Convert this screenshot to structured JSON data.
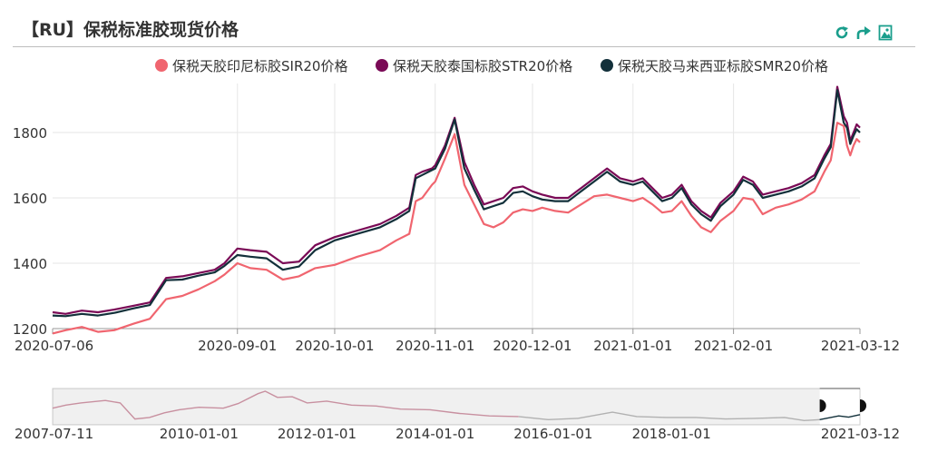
{
  "title": "【RU】保税标准胶现货价格",
  "toolbar": {
    "refresh_icon": "refresh-icon",
    "share_icon": "share-icon",
    "save_image_icon": "save-image-icon",
    "accent_color": "#1a9e8c"
  },
  "chart_data": {
    "type": "line",
    "grid": true,
    "legend_position": "top",
    "x_ticks": [
      "2020-07-06",
      "2020-09-01",
      "2020-10-01",
      "2020-11-01",
      "2020-12-01",
      "2021-01-01",
      "2021-02-01",
      "2021-03-12"
    ],
    "y_ticks": [
      1200,
      1400,
      1600,
      1800
    ],
    "xlim": [
      "2020-07-06",
      "2021-03-12"
    ],
    "ylim": [
      1200,
      1950
    ],
    "series": [
      {
        "name": "保税天胶印尼标胶SIR20价格",
        "color": "#f0656f",
        "points": [
          [
            "2020-07-06",
            1185
          ],
          [
            "2020-07-10",
            1195
          ],
          [
            "2020-07-15",
            1205
          ],
          [
            "2020-07-20",
            1190
          ],
          [
            "2020-07-25",
            1195
          ],
          [
            "2020-07-31",
            1215
          ],
          [
            "2020-08-05",
            1230
          ],
          [
            "2020-08-10",
            1290
          ],
          [
            "2020-08-15",
            1300
          ],
          [
            "2020-08-20",
            1320
          ],
          [
            "2020-08-25",
            1345
          ],
          [
            "2020-08-28",
            1365
          ],
          [
            "2020-09-01",
            1400
          ],
          [
            "2020-09-05",
            1385
          ],
          [
            "2020-09-10",
            1380
          ],
          [
            "2020-09-15",
            1350
          ],
          [
            "2020-09-20",
            1360
          ],
          [
            "2020-09-25",
            1385
          ],
          [
            "2020-10-01",
            1395
          ],
          [
            "2020-10-08",
            1420
          ],
          [
            "2020-10-15",
            1440
          ],
          [
            "2020-10-20",
            1470
          ],
          [
            "2020-10-24",
            1490
          ],
          [
            "2020-10-26",
            1590
          ],
          [
            "2020-10-28",
            1600
          ],
          [
            "2020-10-31",
            1640
          ],
          [
            "2020-11-01",
            1650
          ],
          [
            "2020-11-04",
            1720
          ],
          [
            "2020-11-07",
            1795
          ],
          [
            "2020-11-10",
            1640
          ],
          [
            "2020-11-13",
            1580
          ],
          [
            "2020-11-16",
            1520
          ],
          [
            "2020-11-19",
            1510
          ],
          [
            "2020-11-22",
            1525
          ],
          [
            "2020-11-25",
            1555
          ],
          [
            "2020-11-28",
            1565
          ],
          [
            "2020-12-01",
            1560
          ],
          [
            "2020-12-04",
            1570
          ],
          [
            "2020-12-08",
            1560
          ],
          [
            "2020-12-12",
            1555
          ],
          [
            "2020-12-16",
            1580
          ],
          [
            "2020-12-20",
            1605
          ],
          [
            "2020-12-24",
            1610
          ],
          [
            "2020-12-28",
            1600
          ],
          [
            "2021-01-01",
            1590
          ],
          [
            "2021-01-04",
            1600
          ],
          [
            "2021-01-07",
            1580
          ],
          [
            "2021-01-10",
            1555
          ],
          [
            "2021-01-13",
            1560
          ],
          [
            "2021-01-16",
            1590
          ],
          [
            "2021-01-19",
            1545
          ],
          [
            "2021-01-22",
            1510
          ],
          [
            "2021-01-25",
            1495
          ],
          [
            "2021-01-28",
            1530
          ],
          [
            "2021-02-01",
            1560
          ],
          [
            "2021-02-04",
            1600
          ],
          [
            "2021-02-07",
            1595
          ],
          [
            "2021-02-10",
            1550
          ],
          [
            "2021-02-14",
            1570
          ],
          [
            "2021-02-18",
            1580
          ],
          [
            "2021-02-22",
            1595
          ],
          [
            "2021-02-26",
            1620
          ],
          [
            "2021-03-01",
            1680
          ],
          [
            "2021-03-03",
            1715
          ],
          [
            "2021-03-05",
            1830
          ],
          [
            "2021-03-07",
            1820
          ],
          [
            "2021-03-08",
            1760
          ],
          [
            "2021-03-09",
            1730
          ],
          [
            "2021-03-10",
            1760
          ],
          [
            "2021-03-11",
            1780
          ],
          [
            "2021-03-12",
            1770
          ]
        ]
      },
      {
        "name": "保税天胶泰国标胶STR20价格",
        "color": "#7a0a56",
        "points": [
          [
            "2020-07-06",
            1250
          ],
          [
            "2020-07-10",
            1245
          ],
          [
            "2020-07-15",
            1255
          ],
          [
            "2020-07-20",
            1250
          ],
          [
            "2020-07-25",
            1258
          ],
          [
            "2020-07-31",
            1270
          ],
          [
            "2020-08-05",
            1280
          ],
          [
            "2020-08-10",
            1355
          ],
          [
            "2020-08-15",
            1360
          ],
          [
            "2020-08-20",
            1370
          ],
          [
            "2020-08-25",
            1380
          ],
          [
            "2020-08-28",
            1400
          ],
          [
            "2020-09-01",
            1445
          ],
          [
            "2020-09-05",
            1440
          ],
          [
            "2020-09-10",
            1435
          ],
          [
            "2020-09-15",
            1400
          ],
          [
            "2020-09-20",
            1405
          ],
          [
            "2020-09-25",
            1455
          ],
          [
            "2020-10-01",
            1480
          ],
          [
            "2020-10-08",
            1500
          ],
          [
            "2020-10-15",
            1520
          ],
          [
            "2020-10-20",
            1545
          ],
          [
            "2020-10-24",
            1570
          ],
          [
            "2020-10-26",
            1670
          ],
          [
            "2020-10-28",
            1680
          ],
          [
            "2020-10-31",
            1690
          ],
          [
            "2020-11-01",
            1700
          ],
          [
            "2020-11-04",
            1760
          ],
          [
            "2020-11-07",
            1845
          ],
          [
            "2020-11-10",
            1710
          ],
          [
            "2020-11-13",
            1640
          ],
          [
            "2020-11-16",
            1580
          ],
          [
            "2020-11-19",
            1590
          ],
          [
            "2020-11-22",
            1600
          ],
          [
            "2020-11-25",
            1630
          ],
          [
            "2020-11-28",
            1635
          ],
          [
            "2020-12-01",
            1620
          ],
          [
            "2020-12-04",
            1610
          ],
          [
            "2020-12-08",
            1600
          ],
          [
            "2020-12-12",
            1600
          ],
          [
            "2020-12-16",
            1630
          ],
          [
            "2020-12-20",
            1660
          ],
          [
            "2020-12-24",
            1690
          ],
          [
            "2020-12-28",
            1660
          ],
          [
            "2021-01-01",
            1650
          ],
          [
            "2021-01-04",
            1660
          ],
          [
            "2021-01-07",
            1630
          ],
          [
            "2021-01-10",
            1600
          ],
          [
            "2021-01-13",
            1610
          ],
          [
            "2021-01-16",
            1640
          ],
          [
            "2021-01-19",
            1590
          ],
          [
            "2021-01-22",
            1560
          ],
          [
            "2021-01-25",
            1540
          ],
          [
            "2021-01-28",
            1585
          ],
          [
            "2021-02-01",
            1620
          ],
          [
            "2021-02-04",
            1665
          ],
          [
            "2021-02-07",
            1650
          ],
          [
            "2021-02-10",
            1610
          ],
          [
            "2021-02-14",
            1620
          ],
          [
            "2021-02-18",
            1630
          ],
          [
            "2021-02-22",
            1645
          ],
          [
            "2021-02-26",
            1670
          ],
          [
            "2021-03-01",
            1730
          ],
          [
            "2021-03-03",
            1765
          ],
          [
            "2021-03-05",
            1940
          ],
          [
            "2021-03-07",
            1850
          ],
          [
            "2021-03-08",
            1830
          ],
          [
            "2021-03-09",
            1775
          ],
          [
            "2021-03-10",
            1800
          ],
          [
            "2021-03-11",
            1825
          ],
          [
            "2021-03-12",
            1815
          ]
        ]
      },
      {
        "name": "保税天胶马来西亚标胶SMR20价格",
        "color": "#12303a",
        "points": [
          [
            "2020-07-06",
            1240
          ],
          [
            "2020-07-10",
            1238
          ],
          [
            "2020-07-15",
            1245
          ],
          [
            "2020-07-20",
            1240
          ],
          [
            "2020-07-25",
            1248
          ],
          [
            "2020-07-31",
            1262
          ],
          [
            "2020-08-05",
            1272
          ],
          [
            "2020-08-10",
            1348
          ],
          [
            "2020-08-15",
            1350
          ],
          [
            "2020-08-20",
            1362
          ],
          [
            "2020-08-25",
            1372
          ],
          [
            "2020-08-28",
            1392
          ],
          [
            "2020-09-01",
            1425
          ],
          [
            "2020-09-05",
            1420
          ],
          [
            "2020-09-10",
            1415
          ],
          [
            "2020-09-15",
            1380
          ],
          [
            "2020-09-20",
            1390
          ],
          [
            "2020-09-25",
            1440
          ],
          [
            "2020-10-01",
            1470
          ],
          [
            "2020-10-08",
            1490
          ],
          [
            "2020-10-15",
            1510
          ],
          [
            "2020-10-20",
            1535
          ],
          [
            "2020-10-24",
            1560
          ],
          [
            "2020-10-26",
            1660
          ],
          [
            "2020-10-28",
            1670
          ],
          [
            "2020-10-31",
            1685
          ],
          [
            "2020-11-01",
            1690
          ],
          [
            "2020-11-04",
            1750
          ],
          [
            "2020-11-07",
            1840
          ],
          [
            "2020-11-10",
            1690
          ],
          [
            "2020-11-13",
            1625
          ],
          [
            "2020-11-16",
            1565
          ],
          [
            "2020-11-19",
            1575
          ],
          [
            "2020-11-22",
            1585
          ],
          [
            "2020-11-25",
            1615
          ],
          [
            "2020-11-28",
            1620
          ],
          [
            "2020-12-01",
            1605
          ],
          [
            "2020-12-04",
            1595
          ],
          [
            "2020-12-08",
            1590
          ],
          [
            "2020-12-12",
            1590
          ],
          [
            "2020-12-16",
            1620
          ],
          [
            "2020-12-20",
            1650
          ],
          [
            "2020-12-24",
            1680
          ],
          [
            "2020-12-28",
            1650
          ],
          [
            "2021-01-01",
            1640
          ],
          [
            "2021-01-04",
            1650
          ],
          [
            "2021-01-07",
            1620
          ],
          [
            "2021-01-10",
            1590
          ],
          [
            "2021-01-13",
            1600
          ],
          [
            "2021-01-16",
            1630
          ],
          [
            "2021-01-19",
            1580
          ],
          [
            "2021-01-22",
            1550
          ],
          [
            "2021-01-25",
            1530
          ],
          [
            "2021-01-28",
            1575
          ],
          [
            "2021-02-01",
            1610
          ],
          [
            "2021-02-04",
            1655
          ],
          [
            "2021-02-07",
            1640
          ],
          [
            "2021-02-10",
            1600
          ],
          [
            "2021-02-14",
            1610
          ],
          [
            "2021-02-18",
            1620
          ],
          [
            "2021-02-22",
            1635
          ],
          [
            "2021-02-26",
            1660
          ],
          [
            "2021-03-01",
            1720
          ],
          [
            "2021-03-03",
            1755
          ],
          [
            "2021-03-05",
            1930
          ],
          [
            "2021-03-07",
            1830
          ],
          [
            "2021-03-08",
            1815
          ],
          [
            "2021-03-09",
            1765
          ],
          [
            "2021-03-10",
            1790
          ],
          [
            "2021-03-11",
            1810
          ],
          [
            "2021-03-12",
            1800
          ]
        ]
      }
    ]
  },
  "navigator": {
    "x_ticks": [
      "2007-07-11",
      "2010-01-01",
      "2012-01-01",
      "2014-01-01",
      "2016-01-01",
      "2018-01-01",
      "2021-03-12"
    ],
    "range_start": "2020-07-06",
    "range_end": "2021-03-12",
    "overview_points": [
      [
        "2007-07-11",
        0.45
      ],
      [
        "2007-10-01",
        0.55
      ],
      [
        "2008-01-01",
        0.62
      ],
      [
        "2008-06-01",
        0.7
      ],
      [
        "2008-09-01",
        0.62
      ],
      [
        "2008-12-01",
        0.1
      ],
      [
        "2009-03-01",
        0.15
      ],
      [
        "2009-06-01",
        0.3
      ],
      [
        "2009-09-01",
        0.4
      ],
      [
        "2010-01-01",
        0.48
      ],
      [
        "2010-06-01",
        0.45
      ],
      [
        "2010-09-01",
        0.6
      ],
      [
        "2011-01-01",
        0.92
      ],
      [
        "2011-02-15",
        1.0
      ],
      [
        "2011-05-01",
        0.8
      ],
      [
        "2011-08-01",
        0.82
      ],
      [
        "2011-11-01",
        0.62
      ],
      [
        "2012-03-01",
        0.68
      ],
      [
        "2012-08-01",
        0.55
      ],
      [
        "2013-01-01",
        0.52
      ],
      [
        "2013-06-01",
        0.42
      ],
      [
        "2013-12-01",
        0.4
      ],
      [
        "2014-06-01",
        0.28
      ],
      [
        "2014-12-01",
        0.2
      ],
      [
        "2015-06-01",
        0.18
      ],
      [
        "2015-12-01",
        0.08
      ],
      [
        "2016-06-01",
        0.12
      ],
      [
        "2017-01-01",
        0.32
      ],
      [
        "2017-06-01",
        0.18
      ],
      [
        "2017-12-01",
        0.15
      ],
      [
        "2018-06-01",
        0.15
      ],
      [
        "2018-12-01",
        0.1
      ],
      [
        "2019-06-01",
        0.12
      ],
      [
        "2019-12-01",
        0.15
      ],
      [
        "2020-04-01",
        0.05
      ],
      [
        "2020-07-06",
        0.08
      ],
      [
        "2020-11-01",
        0.2
      ],
      [
        "2021-01-01",
        0.16
      ],
      [
        "2021-03-12",
        0.24
      ]
    ]
  }
}
